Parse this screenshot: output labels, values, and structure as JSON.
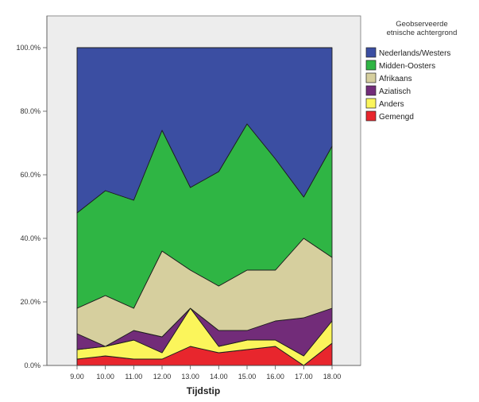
{
  "chart_data": {
    "type": "area",
    "stacked": true,
    "percent": true,
    "xlabel": "Tijdstip",
    "ylabel": "",
    "ylim": [
      0,
      100
    ],
    "y_ticks": [
      "0.0%",
      "20.0%",
      "40.0%",
      "60.0%",
      "80.0%",
      "100.0%"
    ],
    "categories": [
      "9.00",
      "10.00",
      "11.00",
      "12.00",
      "13.00",
      "14.00",
      "15.00",
      "16.00",
      "17.00",
      "18.00"
    ],
    "legend_title": "Geobserveerde etnische achtergrond",
    "legend_title_lines": [
      "Geobserveerde",
      "etnische achtergrond"
    ],
    "legend_position": "right",
    "series": [
      {
        "name": "Gemengd",
        "color": "#e8262d",
        "values": [
          2,
          3,
          2,
          2,
          6,
          4,
          5,
          6,
          0,
          7
        ]
      },
      {
        "name": "Anders",
        "color": "#fbf55b",
        "values": [
          3,
          3,
          6,
          2,
          12,
          2,
          3,
          2,
          3,
          7
        ]
      },
      {
        "name": "Aziatisch",
        "color": "#722c79",
        "values": [
          5,
          0,
          3,
          5,
          0,
          5,
          3,
          6,
          12,
          4
        ]
      },
      {
        "name": "Afrikaans",
        "color": "#d6cf9e",
        "values": [
          8,
          16,
          7,
          27,
          12,
          14,
          19,
          16,
          25,
          16
        ]
      },
      {
        "name": "Midden-Oosters",
        "color": "#2fb544",
        "values": [
          30,
          33,
          34,
          38,
          26,
          36,
          46,
          35,
          13,
          35
        ]
      },
      {
        "name": "Nederlands/Westers",
        "color": "#3b4ea2",
        "values": [
          52,
          45,
          48,
          26,
          44,
          39,
          24,
          35,
          47,
          31
        ]
      }
    ],
    "legend_order": [
      "Nederlands/Westers",
      "Midden-Oosters",
      "Afrikaans",
      "Aziatisch",
      "Anders",
      "Gemengd"
    ],
    "plot_background": "#ededed",
    "grid": false
  }
}
